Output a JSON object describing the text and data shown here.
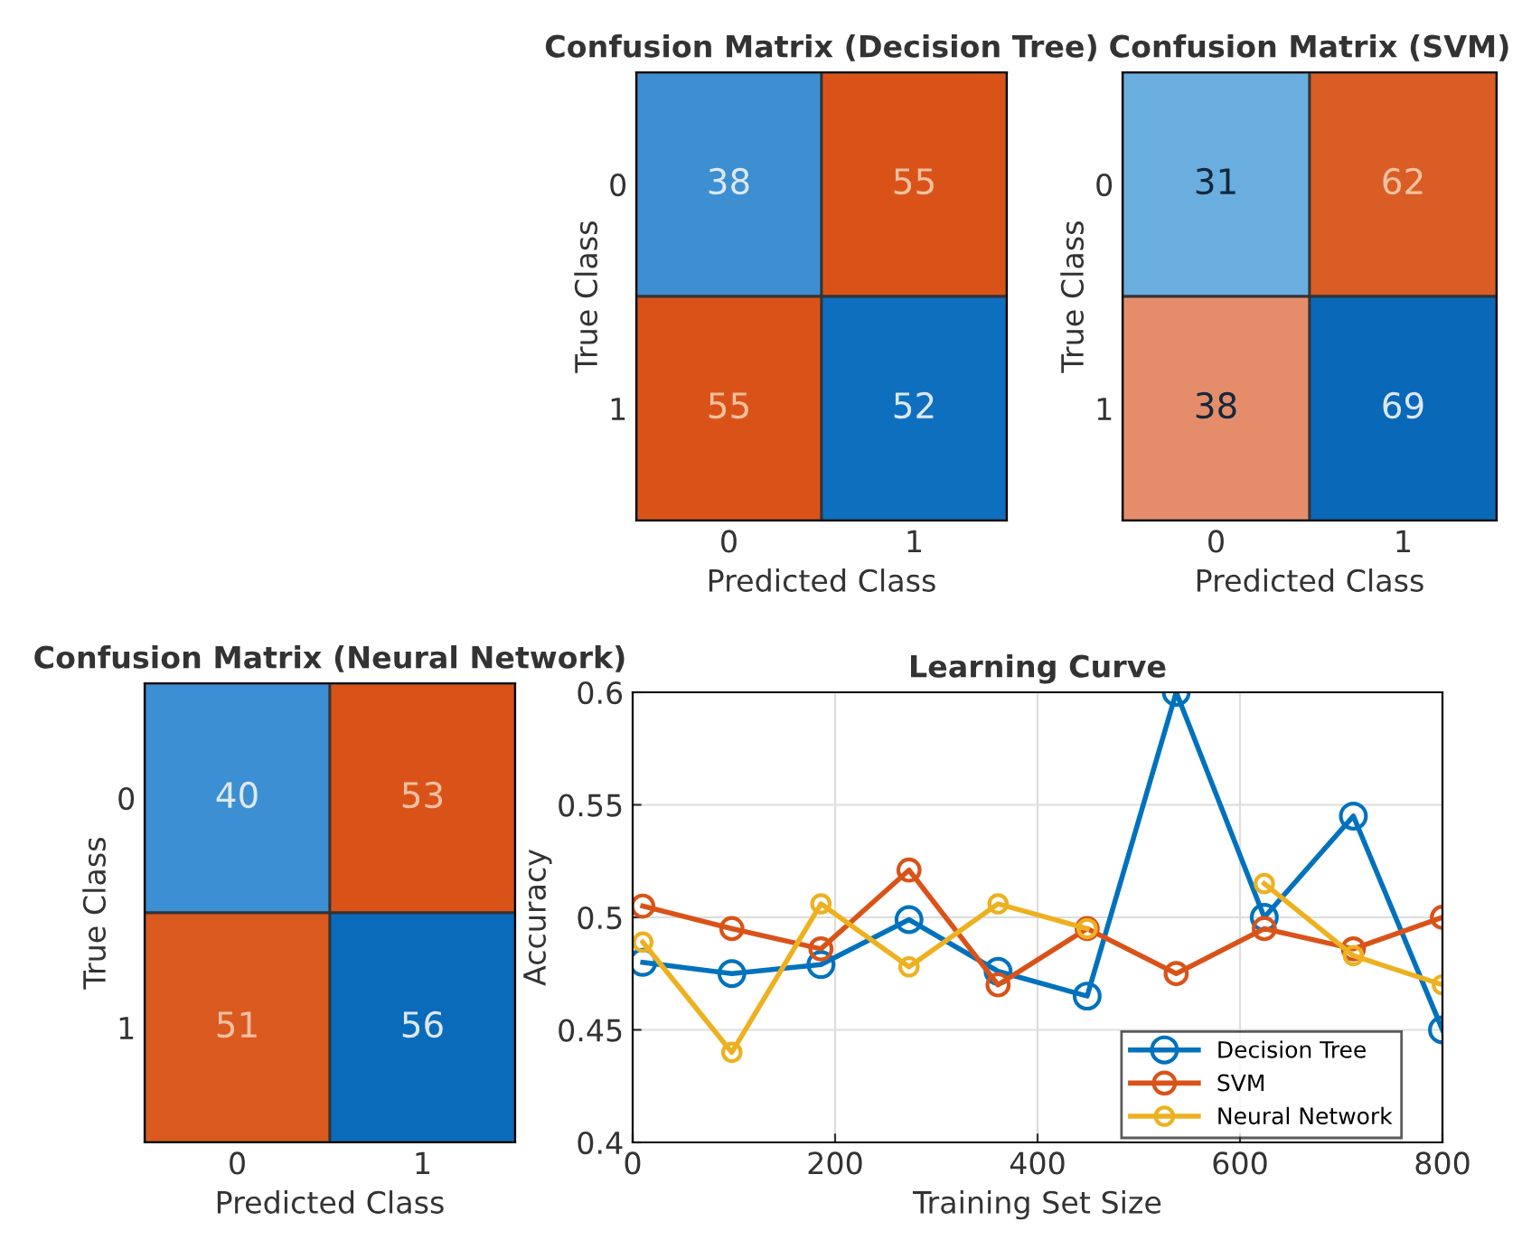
{
  "chart_data": [
    {
      "type": "heatmap",
      "title": "Confusion Matrix (Decision Tree)",
      "xlabel": "Predicted Class",
      "ylabel": "True Class",
      "categories": [
        "0",
        "1"
      ],
      "y_categories": [
        "0",
        "1"
      ],
      "cells": [
        [
          38,
          55
        ],
        [
          55,
          52
        ]
      ],
      "colors": [
        [
          "#3d8fd1",
          "#d95319"
        ],
        [
          "#d95319",
          "#0f6fbf"
        ]
      ],
      "data_labels": true
    },
    {
      "type": "heatmap",
      "title": "Confusion Matrix (SVM)",
      "xlabel": "Predicted Class",
      "ylabel": "True Class",
      "categories": [
        "0",
        "1"
      ],
      "y_categories": [
        "0",
        "1"
      ],
      "cells": [
        [
          31,
          62
        ],
        [
          38,
          69
        ]
      ],
      "colors": [
        [
          "#6aaee0",
          "#d95d25"
        ],
        [
          "#e58d6a",
          "#0a68b8"
        ]
      ],
      "data_labels": true
    },
    {
      "type": "heatmap",
      "title": "Confusion Matrix (Neural Network)",
      "xlabel": "Predicted Class",
      "ylabel": "True Class",
      "categories": [
        "0",
        "1"
      ],
      "y_categories": [
        "0",
        "1"
      ],
      "cells": [
        [
          40,
          53
        ],
        [
          51,
          56
        ]
      ],
      "colors": [
        [
          "#3c8fd2",
          "#d95319"
        ],
        [
          "#da5a1f",
          "#0b6bbb"
        ]
      ],
      "data_labels": true
    },
    {
      "type": "line",
      "title": "Learning Curve",
      "xlabel": "Training Set Size",
      "ylabel": "Accuracy",
      "x": [
        10,
        98,
        186,
        273,
        361,
        449,
        537,
        624,
        712,
        800
      ],
      "series": [
        {
          "name": "Decision Tree",
          "color": "#0072bd",
          "values": [
            0.48,
            0.475,
            0.479,
            0.499,
            0.476,
            0.465,
            0.6,
            0.5,
            0.545,
            0.45
          ]
        },
        {
          "name": "SVM",
          "color": "#d95319",
          "values": [
            0.505,
            0.495,
            0.486,
            0.521,
            0.47,
            0.495,
            0.475,
            0.495,
            0.486,
            0.5
          ]
        },
        {
          "name": "Neural Network",
          "color": "#edb120",
          "values": [
            0.489,
            0.44,
            0.506,
            0.478,
            0.506,
            0.495,
            null,
            0.515,
            0.483,
            0.47
          ]
        }
      ],
      "xlim": [
        0,
        800
      ],
      "xticks": [
        0,
        200,
        400,
        600,
        800
      ],
      "ylim": [
        0.4,
        0.6
      ],
      "yticks": [
        0.4,
        0.45,
        0.5,
        0.55,
        0.6
      ],
      "grid": true,
      "legend": "bottom right",
      "marker": "circle",
      "line_style": "solid"
    }
  ]
}
